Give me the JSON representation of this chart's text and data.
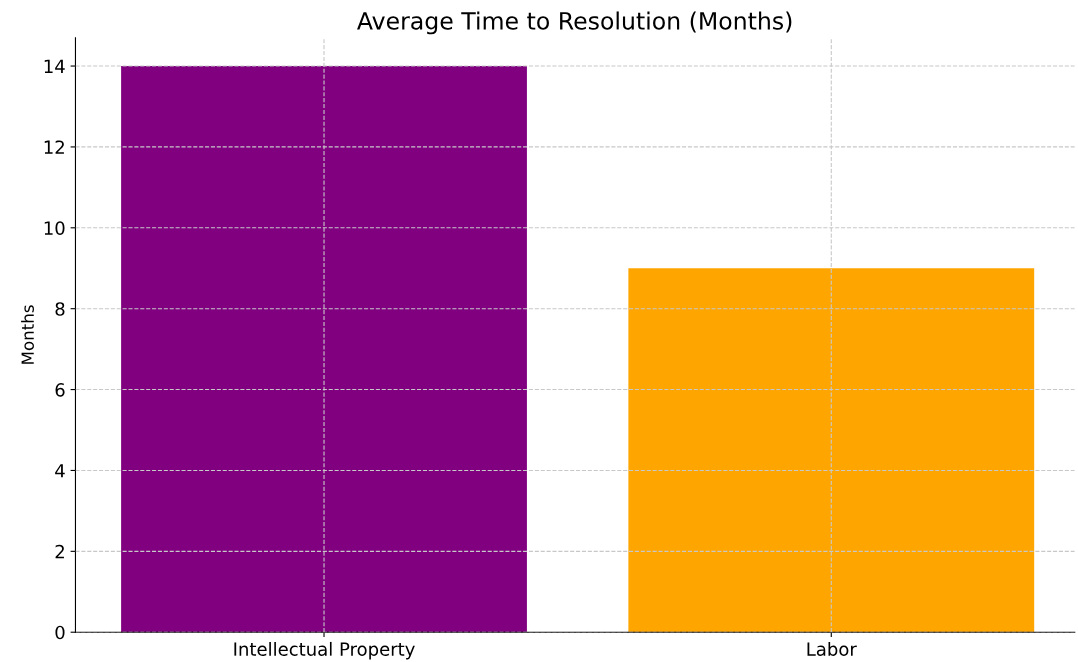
{
  "chart_data": {
    "type": "bar",
    "title": "Average Time to Resolution (Months)",
    "ylabel": "Months",
    "categories": [
      "Intellectual Property",
      "Labor"
    ],
    "values": [
      14,
      9
    ],
    "colors": [
      "#800080",
      "#ffa500"
    ],
    "ylim": [
      0,
      14.7
    ],
    "yticks": [
      0,
      2,
      4,
      6,
      8,
      10,
      12,
      14
    ],
    "grid": true
  }
}
